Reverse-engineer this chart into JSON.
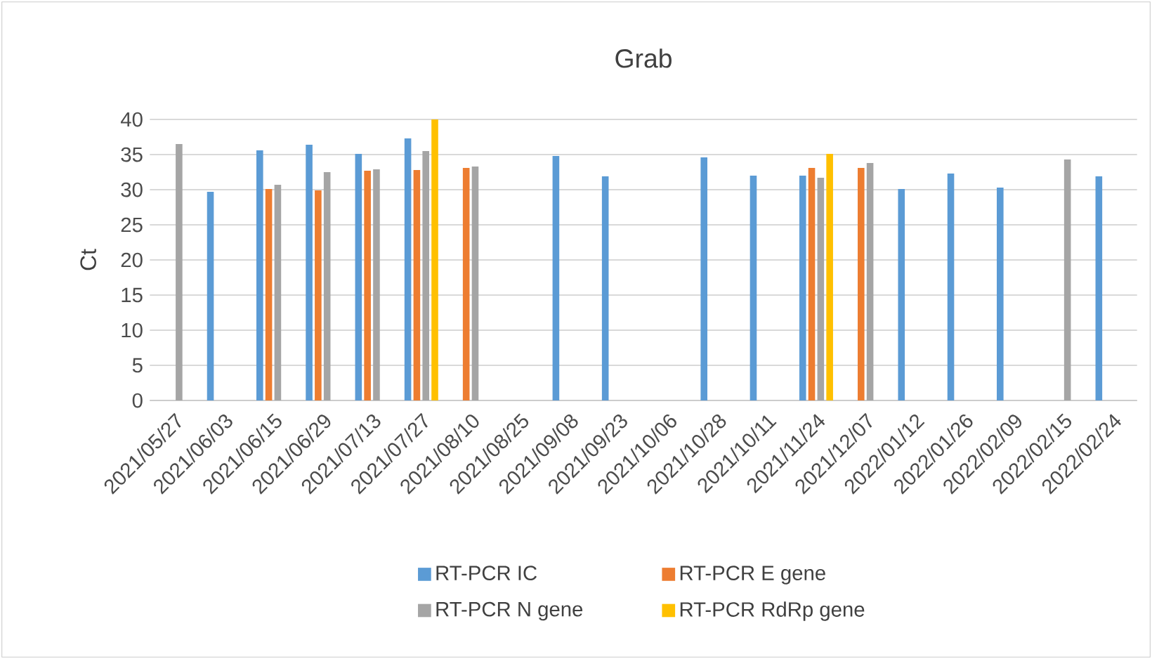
{
  "chart_data": {
    "type": "bar",
    "title": "Grab",
    "ylabel": "Ct",
    "categories": [
      "2021/05/27",
      "2021/06/03",
      "2021/06/15",
      "2021/06/29",
      "2021/07/13",
      "2021/07/27",
      "2021/08/10",
      "2021/08/25",
      "2021/09/08",
      "2021/09/23",
      "2021/10/06",
      "2021/10/28",
      "2021/10/11",
      "2021/11/24",
      "2021/12/07",
      "2022/01/12",
      "2022/01/26",
      "2022/02/09",
      "2022/02/15",
      "2022/02/24"
    ],
    "series": [
      {
        "name": "RT-PCR IC",
        "color": "#5b9bd5",
        "values": [
          null,
          29.7,
          35.6,
          36.4,
          35.1,
          37.3,
          null,
          null,
          34.8,
          31.9,
          null,
          34.6,
          32.0,
          32.0,
          null,
          30.1,
          32.3,
          30.3,
          null,
          31.9
        ]
      },
      {
        "name": "RT-PCR E gene",
        "color": "#ed7d31",
        "values": [
          null,
          null,
          30.1,
          29.9,
          32.7,
          32.8,
          33.1,
          null,
          null,
          null,
          null,
          null,
          null,
          33.1,
          33.1,
          null,
          null,
          null,
          null,
          null
        ]
      },
      {
        "name": "RT-PCR N gene",
        "color": "#a5a5a5",
        "values": [
          36.5,
          null,
          30.7,
          32.5,
          32.9,
          35.5,
          33.3,
          null,
          null,
          null,
          null,
          null,
          null,
          31.7,
          33.8,
          null,
          null,
          null,
          34.3,
          null
        ]
      },
      {
        "name": "RT-PCR RdRp gene",
        "color": "#ffc000",
        "values": [
          null,
          null,
          null,
          null,
          null,
          40,
          null,
          null,
          null,
          null,
          null,
          null,
          null,
          35.1,
          null,
          null,
          null,
          null,
          null,
          null
        ]
      }
    ],
    "ylim": [
      0,
      40
    ],
    "yticks": [
      0,
      5,
      10,
      15,
      20,
      25,
      30,
      35,
      40
    ],
    "grid": "y",
    "legend": "bottom"
  }
}
